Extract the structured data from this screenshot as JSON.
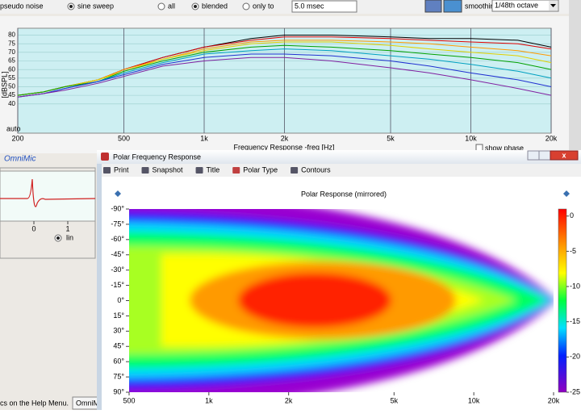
{
  "toolbar": {
    "options": [
      "pseudo noise",
      "sine sweep",
      "all",
      "blended",
      "only to"
    ],
    "gate": "5.0 msec",
    "smoothing_label": "smoothing",
    "smoothing": "1/48th octave"
  },
  "response_chart": {
    "type": "line",
    "xlabel": "Frequency Response -freq [Hz]",
    "ylabel": "[dBSPL]",
    "auto": "auto",
    "xscale": "log",
    "xlim": [
      200,
      20000
    ],
    "ylim": [
      23,
      84
    ],
    "xticks": [
      200,
      500,
      {
        "value": 1000,
        "label": "1k"
      },
      {
        "value": 2000,
        "label": "2k"
      },
      {
        "value": 5000,
        "label": "5k"
      },
      {
        "value": 10000,
        "label": "10k"
      },
      {
        "value": 20000,
        "label": "20k"
      }
    ],
    "yticks": [
      40,
      45,
      50,
      55,
      60,
      65,
      70,
      75,
      80
    ],
    "grid": true,
    "x": [
      200,
      250,
      300,
      400,
      500,
      700,
      1000,
      1500,
      2000,
      3000,
      5000,
      7000,
      10000,
      15000,
      20000
    ],
    "series": [
      {
        "color": "#000000",
        "values": [
          45,
          47,
          50,
          54,
          60,
          67,
          73,
          78,
          80,
          80,
          79,
          78,
          78,
          77,
          73
        ]
      },
      {
        "color": "#e00000",
        "values": [
          45,
          47,
          50,
          54,
          60,
          67,
          73,
          77,
          79,
          79,
          78,
          77,
          76,
          75,
          72
        ]
      },
      {
        "color": "#ff9900",
        "values": [
          45,
          47,
          50,
          54,
          60,
          66,
          72,
          76,
          77,
          77,
          76,
          75,
          73,
          71,
          68
        ]
      },
      {
        "color": "#e0d000",
        "values": [
          45,
          47,
          50,
          54,
          59,
          66,
          71,
          75,
          76,
          76,
          74,
          72,
          70,
          68,
          64
        ]
      },
      {
        "color": "#00a000",
        "values": [
          45,
          47,
          50,
          53,
          59,
          65,
          70,
          73,
          74,
          73,
          71,
          69,
          67,
          64,
          60
        ]
      },
      {
        "color": "#00a0c0",
        "values": [
          44,
          46,
          49,
          53,
          58,
          64,
          69,
          71,
          72,
          71,
          68,
          66,
          63,
          59,
          55
        ]
      },
      {
        "color": "#2030d0",
        "values": [
          44,
          46,
          49,
          53,
          57,
          63,
          67,
          69,
          69,
          68,
          65,
          62,
          58,
          54,
          50
        ]
      },
      {
        "color": "#8020a0",
        "values": [
          44,
          46,
          48,
          52,
          56,
          62,
          65,
          67,
          67,
          65,
          61,
          58,
          54,
          49,
          45
        ]
      }
    ]
  },
  "show_phase": "show phase",
  "omnimic": "OmniMic",
  "impulse": {
    "xticks": [
      0,
      1
    ],
    "mode": "lin"
  },
  "polar_window": {
    "title": "Polar Frequency Response",
    "menu": [
      "Print",
      "Snapshot",
      "Title",
      "Polar Type",
      "Contours"
    ],
    "chart": {
      "type": "heatmap",
      "title": "Polar Response (mirrored)",
      "xscale": "log",
      "xlim": [
        500,
        20000
      ],
      "ylim": [
        -90,
        90
      ],
      "xticks": [
        500,
        {
          "value": 1000,
          "label": "1k"
        },
        {
          "value": 2000,
          "label": "2k"
        },
        {
          "value": 5000,
          "label": "5k"
        },
        {
          "value": 10000,
          "label": "10k"
        },
        {
          "value": 20000,
          "label": "20k"
        }
      ],
      "yticks": [
        {
          "value": -90,
          "label": "-90°"
        },
        {
          "value": -75,
          "label": "-75°"
        },
        {
          "value": -60,
          "label": "-60°"
        },
        {
          "value": -45,
          "label": "-45°"
        },
        {
          "value": -30,
          "label": "-30°"
        },
        {
          "value": -15,
          "label": "-15°"
        },
        {
          "value": 0,
          "label": "0°"
        },
        {
          "value": 15,
          "label": "15°"
        },
        {
          "value": 30,
          "label": "30°"
        },
        {
          "value": 45,
          "label": "45°"
        },
        {
          "value": 60,
          "label": "60°"
        },
        {
          "value": 75,
          "label": "75°"
        },
        {
          "value": 90,
          "label": "90°"
        }
      ],
      "colorbar": {
        "lim": [
          -25,
          1
        ],
        "ticks": [
          0,
          -5,
          -10,
          -15,
          -20,
          -25
        ]
      }
    }
  },
  "status": "cs on the Help Menu.",
  "taskbar": "OmniMic"
}
